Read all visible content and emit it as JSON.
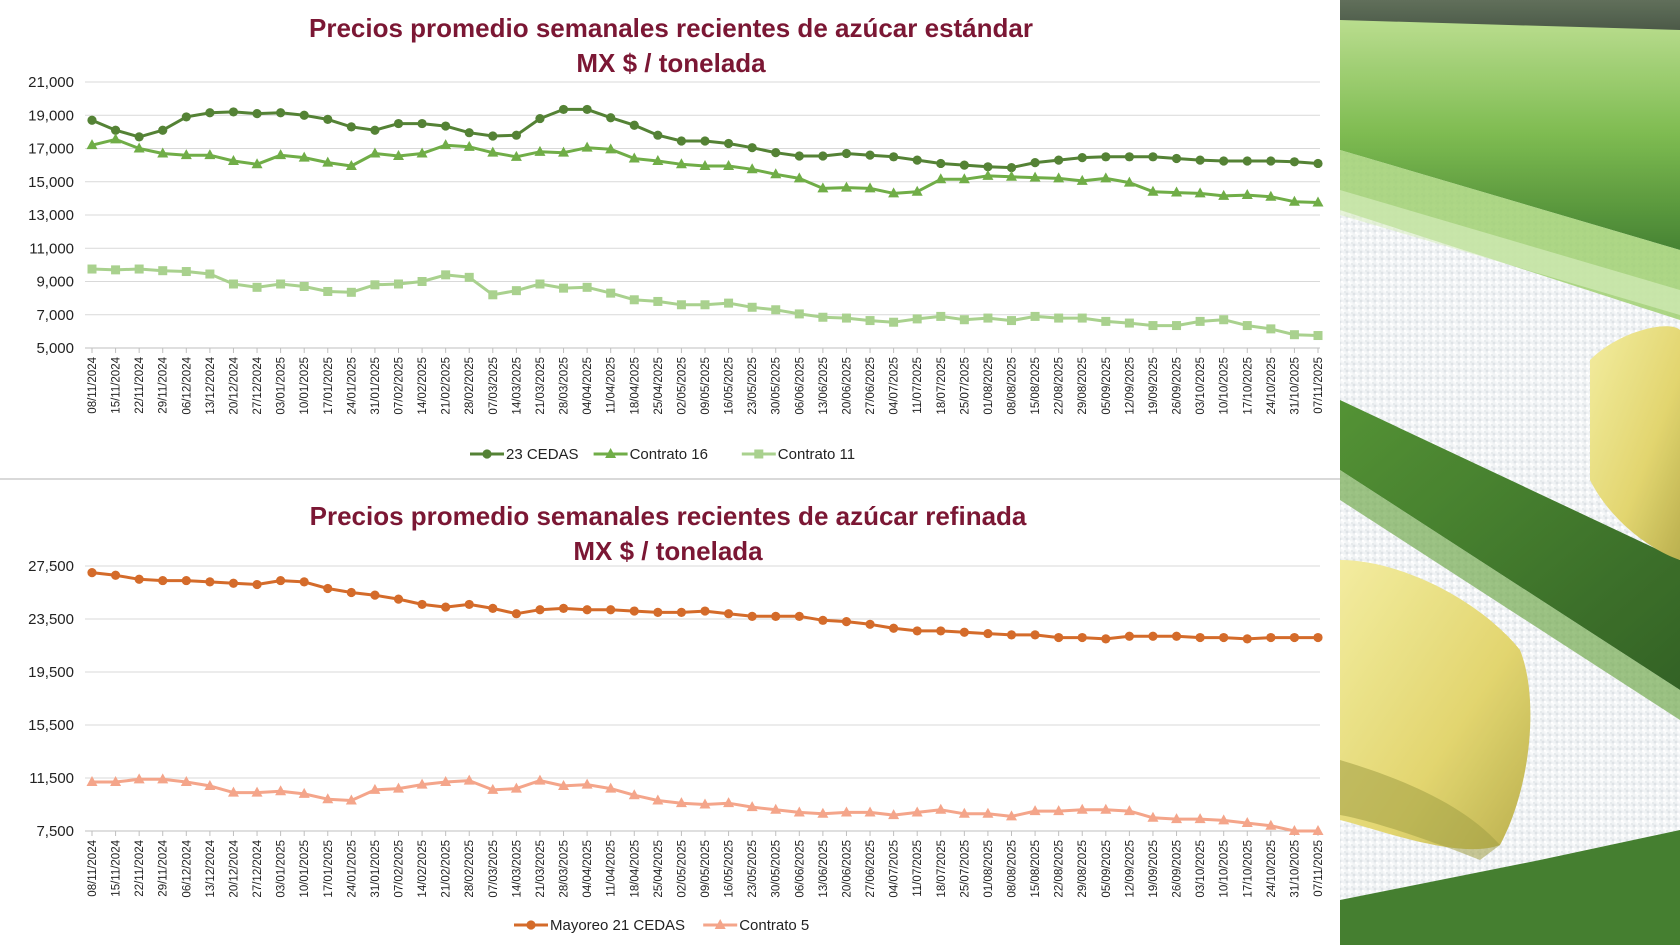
{
  "colors": {
    "title": "#7b1734",
    "cedas23": "#548235",
    "contrato16": "#70ad47",
    "contrato11": "#a9d18e",
    "mayoreo21": "#d46b2a",
    "contrato5": "#f4a58a",
    "grid": "#d9d9d9"
  },
  "chart_data": [
    {
      "type": "line",
      "title": "Precios promedio semanales recientes de azúcar estándar",
      "subtitle": "MX $ / tonelada",
      "xlabel": "",
      "ylabel": "",
      "ylim": [
        5000,
        21000
      ],
      "yticks": [
        5000,
        7000,
        9000,
        11000,
        13000,
        15000,
        17000,
        19000,
        21000
      ],
      "ytick_labels": [
        "5,000",
        "7,000",
        "9,000",
        "11,000",
        "13,000",
        "15,000",
        "17,000",
        "19,000",
        "21,000"
      ],
      "legend_position": "bottom",
      "grid": true,
      "categories": [
        "08/11/2024",
        "15/11/2024",
        "22/11/2024",
        "29/11/2024",
        "06/12/2024",
        "13/12/2024",
        "20/12/2024",
        "27/12/2024",
        "03/01/2025",
        "10/01/2025",
        "17/01/2025",
        "24/01/2025",
        "31/01/2025",
        "07/02/2025",
        "14/02/2025",
        "21/02/2025",
        "28/02/2025",
        "07/03/2025",
        "14/03/2025",
        "21/03/2025",
        "28/03/2025",
        "04/04/2025",
        "11/04/2025",
        "18/04/2025",
        "25/04/2025",
        "02/05/2025",
        "09/05/2025",
        "16/05/2025",
        "23/05/2025",
        "30/05/2025",
        "06/06/2025",
        "13/06/2025",
        "20/06/2025",
        "27/06/2025",
        "04/07/2025",
        "11/07/2025",
        "18/07/2025",
        "25/07/2025",
        "01/08/2025",
        "08/08/2025",
        "15/08/2025",
        "22/08/2025",
        "29/08/2025",
        "05/09/2025",
        "12/09/2025",
        "19/09/2025",
        "26/09/2025",
        "03/10/2025",
        "10/10/2025",
        "17/10/2025",
        "24/10/2025",
        "31/10/2025",
        "07/11/2025"
      ],
      "series": [
        {
          "name": "23 CEDAS",
          "marker": "circle",
          "color": "#548235",
          "values": [
            18700,
            18100,
            17700,
            18100,
            18900,
            19150,
            19200,
            19100,
            19150,
            19000,
            18750,
            18300,
            18100,
            18500,
            18500,
            18350,
            17950,
            17750,
            17800,
            18800,
            19350,
            19350,
            18850,
            18400,
            17800,
            17450,
            17450,
            17300,
            17050,
            16750,
            16550,
            16550,
            16700,
            16600,
            16500,
            16300,
            16100,
            16000,
            15900,
            15850,
            16150,
            16300,
            16450,
            16500,
            16500,
            16500,
            16400,
            16300,
            16250,
            16250,
            16250,
            16200,
            16100
          ]
        },
        {
          "name": "Contrato 16",
          "marker": "triangle",
          "color": "#70ad47",
          "values": [
            17200,
            17550,
            17000,
            16700,
            16600,
            16600,
            16250,
            16050,
            16600,
            16450,
            16150,
            15950,
            16700,
            16550,
            16700,
            17200,
            17100,
            16750,
            16500,
            16800,
            16750,
            17050,
            16950,
            16400,
            16250,
            16050,
            15950,
            15950,
            15750,
            15450,
            15200,
            14600,
            14650,
            14600,
            14300,
            14400,
            15150,
            15150,
            15350,
            15300,
            15250,
            15200,
            15050,
            15200,
            14950,
            14400,
            14350,
            14300,
            14150,
            14200,
            14100,
            13800,
            13750
          ]
        },
        {
          "name": "Contrato 11",
          "marker": "square",
          "color": "#a9d18e",
          "values": [
            9750,
            9700,
            9750,
            9650,
            9600,
            9450,
            8850,
            8650,
            8850,
            8700,
            8400,
            8350,
            8800,
            8850,
            9000,
            9400,
            9250,
            8200,
            8450,
            8850,
            8600,
            8650,
            8300,
            7900,
            7800,
            7600,
            7600,
            7700,
            7450,
            7300,
            7050,
            6850,
            6800,
            6650,
            6550,
            6750,
            6900,
            6700,
            6800,
            6650,
            6900,
            6800,
            6800,
            6600,
            6500,
            6350,
            6350,
            6600,
            6700,
            6350,
            6150,
            5800,
            5750
          ]
        }
      ]
    },
    {
      "type": "line",
      "title": "Precios promedio semanales recientes de azúcar refinada",
      "subtitle": "MX $ / tonelada",
      "xlabel": "",
      "ylabel": "",
      "ylim": [
        7500,
        27500
      ],
      "yticks": [
        7500,
        11500,
        15500,
        19500,
        23500,
        27500
      ],
      "ytick_labels": [
        "7,500",
        "11,500",
        "15,500",
        "19,500",
        "23,500",
        "27,500"
      ],
      "legend_position": "bottom",
      "grid": true,
      "categories": [
        "08/11/2024",
        "15/11/2024",
        "22/11/2024",
        "29/11/2024",
        "06/12/2024",
        "13/12/2024",
        "20/12/2024",
        "27/12/2024",
        "03/01/2025",
        "10/01/2025",
        "17/01/2025",
        "24/01/2025",
        "31/01/2025",
        "07/02/2025",
        "14/02/2025",
        "21/02/2025",
        "28/02/2025",
        "07/03/2025",
        "14/03/2025",
        "21/03/2025",
        "28/03/2025",
        "04/04/2025",
        "11/04/2025",
        "18/04/2025",
        "25/04/2025",
        "02/05/2025",
        "09/05/2025",
        "16/05/2025",
        "23/05/2025",
        "30/05/2025",
        "06/06/2025",
        "13/06/2025",
        "20/06/2025",
        "27/06/2025",
        "04/07/2025",
        "11/07/2025",
        "18/07/2025",
        "25/07/2025",
        "01/08/2025",
        "08/08/2025",
        "15/08/2025",
        "22/08/2025",
        "29/08/2025",
        "05/09/2025",
        "12/09/2025",
        "19/09/2025",
        "26/09/2025",
        "03/10/2025",
        "10/10/2025",
        "17/10/2025",
        "24/10/2025",
        "31/10/2025",
        "07/11/2025"
      ],
      "series": [
        {
          "name": "Mayoreo 21 CEDAS",
          "marker": "circle",
          "color": "#d46b2a",
          "values": [
            27000,
            26800,
            26500,
            26400,
            26400,
            26300,
            26200,
            26100,
            26400,
            26300,
            25800,
            25500,
            25300,
            25000,
            24600,
            24400,
            24600,
            24300,
            23900,
            24200,
            24300,
            24200,
            24200,
            24100,
            24000,
            24000,
            24100,
            23900,
            23700,
            23700,
            23700,
            23400,
            23300,
            23100,
            22800,
            22600,
            22600,
            22500,
            22400,
            22300,
            22300,
            22100,
            22100,
            22000,
            22200,
            22200,
            22200,
            22100,
            22100,
            22000,
            22100,
            22100,
            22100
          ]
        },
        {
          "name": "Contrato 5",
          "marker": "triangle",
          "color": "#f4a58a",
          "values": [
            11200,
            11200,
            11400,
            11400,
            11200,
            10900,
            10400,
            10400,
            10500,
            10300,
            9900,
            9800,
            10600,
            10700,
            11000,
            11200,
            11300,
            10600,
            10700,
            11300,
            10900,
            11000,
            10700,
            10200,
            9800,
            9600,
            9500,
            9600,
            9300,
            9100,
            8900,
            8800,
            8900,
            8900,
            8700,
            8900,
            9100,
            8800,
            8800,
            8600,
            9000,
            9000,
            9100,
            9100,
            9000,
            8500,
            8400,
            8400,
            8300,
            8100,
            7900,
            7500,
            7500
          ]
        }
      ]
    }
  ]
}
